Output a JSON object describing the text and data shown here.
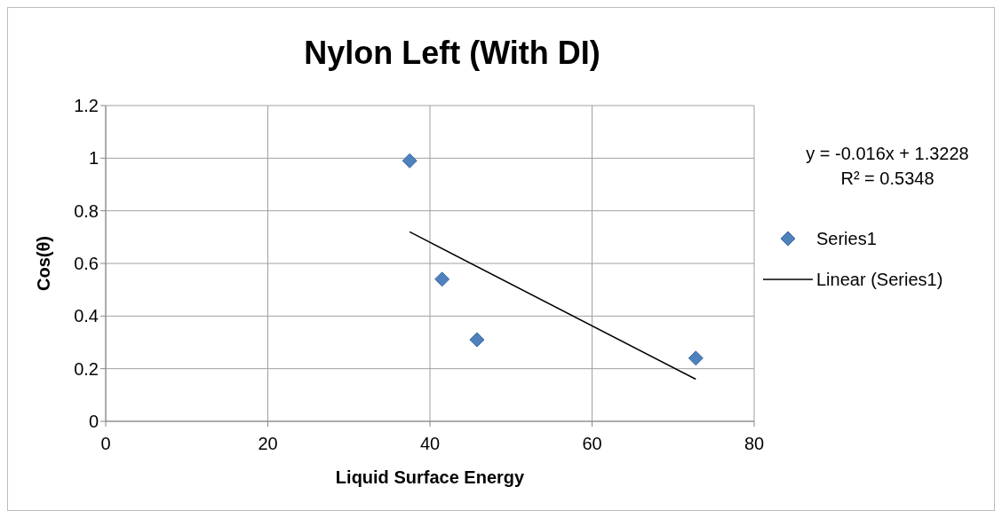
{
  "chart_data": {
    "type": "scatter",
    "title": "Nylon Left (With DI)",
    "xlabel": "Liquid Surface Energy",
    "ylabel": "Cos(θ)",
    "xlim": [
      0,
      80
    ],
    "xticks": [
      0,
      20,
      40,
      60,
      80
    ],
    "ylim": [
      0,
      1.2
    ],
    "yticks": [
      0,
      0.2,
      0.4,
      0.6,
      0.8,
      1,
      1.2
    ],
    "grid": true,
    "legend": "right",
    "series": [
      {
        "name": "Series1",
        "marker": "diamond",
        "color": "#4f81bd",
        "x": [
          37.5,
          41.5,
          45.8,
          72.8
        ],
        "values": [
          0.99,
          0.54,
          0.31,
          0.24
        ]
      },
      {
        "name": "Linear (Series1)",
        "type": "line",
        "marker": "none",
        "color": "#000000",
        "x": [
          37.5,
          72.8
        ],
        "values": [
          0.72,
          0.16
        ]
      }
    ],
    "annotations": [
      "y = -0.016x + 1.3228",
      "R² = 0.5348"
    ]
  }
}
